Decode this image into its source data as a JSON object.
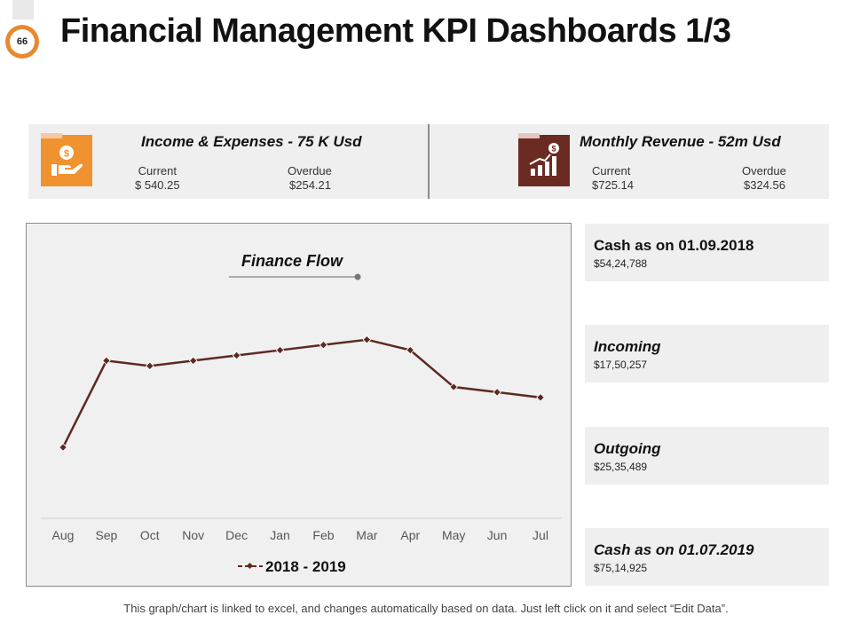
{
  "header": {
    "slide_number": "66",
    "title": "Financial Management KPI Dashboards 1/3"
  },
  "kpis": [
    {
      "title": "Income & Expenses - 75 K Usd",
      "icon": "hand-dollar-icon",
      "current_label": "Current",
      "current_value": "$ 540.25",
      "overdue_label": "Overdue",
      "overdue_value": "$254.21",
      "color": "#f0922f"
    },
    {
      "title": "Monthly Revenue - 52m Usd",
      "icon": "revenue-growth-icon",
      "current_label": "Current",
      "current_value": "$725.14",
      "overdue_label": "Overdue",
      "overdue_value": "$324.56",
      "color": "#6b2a22"
    }
  ],
  "cards": [
    {
      "title": "Cash as on 01.09.2018",
      "value": "$54,24,788"
    },
    {
      "title": "Incoming",
      "value": "$17,50,257"
    },
    {
      "title": "Outgoing",
      "value": "$25,35,489"
    },
    {
      "title": "Cash as on 01.07.2019",
      "value": "$75,14,925"
    }
  ],
  "chart_data": {
    "type": "line",
    "title": "Finance Flow",
    "categories": [
      "Aug",
      "Sep",
      "Oct",
      "Nov",
      "Dec",
      "Jan",
      "Feb",
      "Mar",
      "Apr",
      "May",
      "Jun",
      "Jul"
    ],
    "series": [
      {
        "name": "2018 - 2019",
        "values": [
          27,
          60,
          58,
          60,
          62,
          64,
          66,
          68,
          64,
          50,
          48,
          46
        ]
      }
    ],
    "ylim": [
      0,
      100
    ],
    "line_color": "#5c2a22",
    "grid": false,
    "legend": "bottom",
    "xlabel": "",
    "ylabel": ""
  },
  "footer": {
    "note": "This graph/chart is linked to excel, and changes automatically based on data. Just left click on it and select “Edit Data”."
  }
}
